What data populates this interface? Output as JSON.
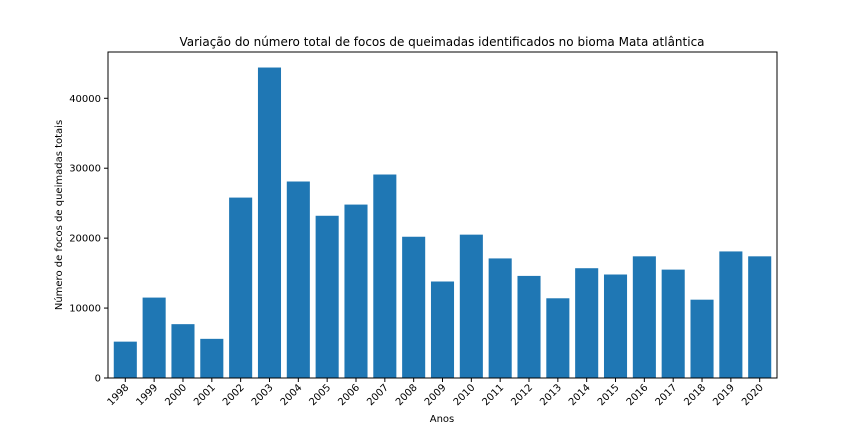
{
  "chart_data": {
    "type": "bar",
    "title": "Variação do número total de focos de queimadas identificados no bioma Mata atlântica",
    "xlabel": "Anos",
    "ylabel": "Número de focos de queimadas totais",
    "categories": [
      "1998",
      "1999",
      "2000",
      "2001",
      "2002",
      "2003",
      "2004",
      "2005",
      "2006",
      "2007",
      "2008",
      "2009",
      "2010",
      "2011",
      "2012",
      "2013",
      "2014",
      "2015",
      "2016",
      "2017",
      "2018",
      "2019",
      "2020"
    ],
    "values": [
      5200,
      11500,
      7700,
      5600,
      25800,
      44400,
      28100,
      23200,
      24800,
      29100,
      20200,
      13800,
      20500,
      17100,
      14600,
      11400,
      15700,
      14800,
      17400,
      15500,
      11200,
      18100,
      17400
    ],
    "ylim": [
      0,
      46620
    ],
    "yticks": [
      0,
      10000,
      20000,
      30000,
      40000
    ],
    "ytick_labels": [
      "0",
      "10000",
      "20000",
      "30000",
      "40000"
    ],
    "grid": false,
    "legend": "none",
    "color": "#1f77b4"
  }
}
